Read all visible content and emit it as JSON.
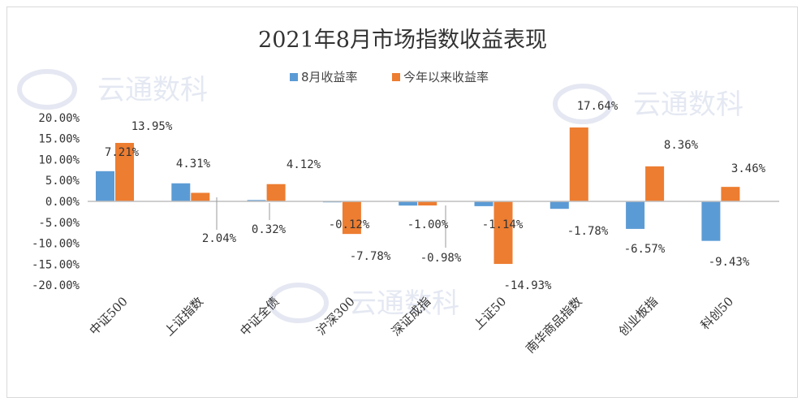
{
  "chart_data": {
    "type": "bar",
    "title": "2021年8月市场指数收益表现",
    "categories": [
      "中证500",
      "上证指数",
      "中证全债",
      "沪深300",
      "深证成指",
      "上证50",
      "南华商品指数",
      "创业板指",
      "科创50"
    ],
    "series": [
      {
        "name": "8月收益率",
        "color": "#5b9bd5",
        "values": [
          7.21,
          4.31,
          0.32,
          -0.12,
          -1.0,
          -1.14,
          -1.78,
          -6.57,
          -9.43
        ],
        "labels": [
          "7.21%",
          "4.31%",
          "0.32%",
          "-0.12%",
          "-1.00%",
          "-1.14%",
          "-1.78%",
          "-6.57%",
          "-9.43%"
        ]
      },
      {
        "name": "今年以来收益率",
        "color": "#ed7d31",
        "values": [
          13.95,
          2.04,
          4.12,
          -7.78,
          -0.98,
          -14.93,
          17.64,
          8.36,
          3.46
        ],
        "labels": [
          "13.95%",
          "2.04%",
          "4.12%",
          "-7.78%",
          "-0.98%",
          "-14.93%",
          "17.64%",
          "8.36%",
          "3.46%"
        ]
      }
    ],
    "y_ticks": [
      "20.00%",
      "15.00%",
      "10.00%",
      "5.00%",
      "0.00%",
      "-5.00%",
      "-10.00%",
      "-15.00%",
      "-20.00%"
    ],
    "ylim": [
      -20,
      20
    ],
    "legend_position": "top-center",
    "grid": false
  },
  "watermark": "云通数科"
}
